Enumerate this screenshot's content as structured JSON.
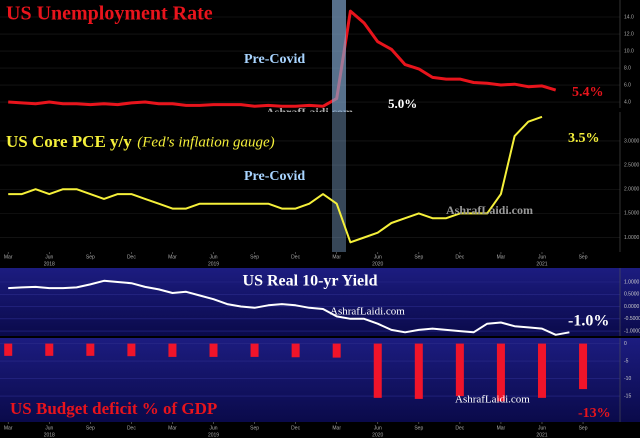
{
  "chart_data": [
    {
      "type": "line",
      "title": "US Unemployment Rate",
      "color": "#e8141c",
      "x": [
        0,
        1,
        2,
        3,
        4,
        5,
        6,
        7,
        8,
        9,
        10,
        11,
        12,
        13,
        14,
        15,
        16,
        17,
        18,
        19,
        20,
        21,
        22,
        23,
        24,
        25,
        26,
        27,
        28,
        29,
        30,
        31,
        32,
        33,
        34,
        35,
        36,
        37,
        38,
        39,
        40
      ],
      "values": [
        4.0,
        3.9,
        3.8,
        4.0,
        3.8,
        3.8,
        3.7,
        3.8,
        3.7,
        3.9,
        4.0,
        3.8,
        3.8,
        3.6,
        3.6,
        3.7,
        3.7,
        3.7,
        3.5,
        3.6,
        3.5,
        3.5,
        3.6,
        3.5,
        4.4,
        14.7,
        13.3,
        11.1,
        10.2,
        8.4,
        7.9,
        6.9,
        6.7,
        6.7,
        6.3,
        6.2,
        6.0,
        6.1,
        5.8,
        5.9,
        5.4
      ],
      "ylim": [
        3.3,
        16.0
      ],
      "yticks": [
        {
          "value": 4,
          "label": "4.0"
        },
        {
          "value": 6,
          "label": "6.0"
        },
        {
          "value": 8,
          "label": "8.0"
        },
        {
          "value": 10,
          "label": "10.0"
        },
        {
          "value": 12,
          "label": "12.0"
        },
        {
          "value": 14,
          "label": "14.0"
        }
      ],
      "xlim": [
        -0.6,
        44.7
      ],
      "grid": true,
      "annotations": [
        "Pre-Covid",
        "5.0%",
        "AshrafLaidi.com",
        "5.4%"
      ]
    },
    {
      "type": "line",
      "title": "US Core PCE y/y",
      "subtitle": "(Fed's inflation gauge)",
      "color": "#f5f03a",
      "x": [
        0,
        1,
        2,
        3,
        4,
        5,
        6,
        7,
        8,
        9,
        10,
        11,
        12,
        13,
        14,
        15,
        16,
        17,
        18,
        19,
        20,
        21,
        22,
        23,
        24,
        25,
        26,
        27,
        28,
        29,
        30,
        31,
        32,
        33,
        34,
        35,
        36,
        37,
        38,
        39
      ],
      "values": [
        1.9,
        1.9,
        2.0,
        1.9,
        2.0,
        2.0,
        1.9,
        1.8,
        1.9,
        1.9,
        1.8,
        1.7,
        1.6,
        1.6,
        1.7,
        1.7,
        1.7,
        1.7,
        1.7,
        1.7,
        1.6,
        1.6,
        1.7,
        1.9,
        1.7,
        0.9,
        1.0,
        1.1,
        1.3,
        1.4,
        1.5,
        1.4,
        1.4,
        1.5,
        1.5,
        1.5,
        1.9,
        3.1,
        3.4,
        3.5
      ],
      "ylim": [
        0.7,
        3.6
      ],
      "yticks": [
        {
          "value": 1,
          "label": "1.0000"
        },
        {
          "value": 1.5,
          "label": "1.5000"
        },
        {
          "value": 2,
          "label": "2.0000"
        },
        {
          "value": 2.5,
          "label": "2.5000"
        },
        {
          "value": 3,
          "label": "3.0000"
        }
      ],
      "xlim": [
        -0.6,
        44.7
      ],
      "grid": true,
      "xticks": [
        {
          "value": 0,
          "label": "Mar"
        },
        {
          "value": 3,
          "label": "Jun"
        },
        {
          "value": 6,
          "label": "Sep"
        },
        {
          "value": 9,
          "label": "Dec"
        },
        {
          "value": 12,
          "label": "Mar"
        },
        {
          "value": 15,
          "label": "Jun"
        },
        {
          "value": 18,
          "label": "Sep"
        },
        {
          "value": 21,
          "label": "Dec"
        },
        {
          "value": 24,
          "label": "Mar"
        },
        {
          "value": 27,
          "label": "Jun"
        },
        {
          "value": 30,
          "label": "Sep"
        },
        {
          "value": 33,
          "label": "Dec"
        },
        {
          "value": 36,
          "label": "Mar"
        },
        {
          "value": 39,
          "label": "Jun"
        },
        {
          "value": 42,
          "label": "Sep"
        }
      ],
      "xyears": [
        {
          "value": 3,
          "label": "2018"
        },
        {
          "value": 15,
          "label": "2019"
        },
        {
          "value": 27,
          "label": "2020"
        },
        {
          "value": 39,
          "label": "2021"
        }
      ],
      "annotations": [
        "3.5%",
        "Pre-Covid",
        "AshrafLaidi.com"
      ]
    },
    {
      "type": "line",
      "title": "US Real 10-yr Yield",
      "color": "#ffffff",
      "x": [
        0,
        1,
        2,
        3,
        4,
        5,
        6,
        7,
        8,
        9,
        10,
        11,
        12,
        13,
        14,
        15,
        16,
        17,
        18,
        19,
        20,
        21,
        22,
        23,
        24,
        25,
        26,
        27,
        28,
        29,
        30,
        31,
        32,
        33,
        34,
        35,
        36,
        37,
        38,
        39,
        40,
        41
      ],
      "values": [
        0.75,
        0.78,
        0.8,
        0.75,
        0.75,
        0.78,
        0.9,
        1.05,
        1.0,
        0.95,
        0.8,
        0.7,
        0.55,
        0.6,
        0.45,
        0.3,
        0.1,
        0.0,
        -0.05,
        0.05,
        0.1,
        0.05,
        -0.05,
        -0.1,
        -0.4,
        -0.5,
        -0.5,
        -0.7,
        -0.95,
        -1.05,
        -0.95,
        -0.9,
        -0.95,
        -1.0,
        -1.05,
        -0.7,
        -0.65,
        -0.8,
        -0.85,
        -0.9,
        -1.15,
        -1.05
      ],
      "ylim": [
        -1.2,
        1.57
      ],
      "yticks": [
        {
          "value": -1,
          "label": "-1.0000"
        },
        {
          "value": -0.5,
          "label": "-0.5000"
        },
        {
          "value": 0,
          "label": "0.0000"
        },
        {
          "value": 0.5,
          "label": "0.5000"
        },
        {
          "value": 1,
          "label": "1.0000"
        }
      ],
      "xlim": [
        -0.6,
        44.7
      ],
      "grid": true,
      "annotations": [
        "AshrafLaidi.com",
        "-1.0%"
      ]
    },
    {
      "type": "bar",
      "title": "US Budget deficit % of GDP",
      "color": "#f0142a",
      "x": [
        0,
        3,
        6,
        9,
        12,
        15,
        18,
        21,
        24,
        27,
        30,
        33,
        36,
        39,
        42
      ],
      "values": [
        -3.5,
        -3.5,
        -3.5,
        -3.6,
        -3.8,
        -3.8,
        -3.8,
        -3.9,
        -4.0,
        -15.5,
        -15.8,
        -15.0,
        -16.5,
        -15.5,
        -13.0
      ],
      "ylim": [
        -22.4,
        1.6
      ],
      "yticks": [
        0,
        -5,
        -10,
        -15
      ],
      "xlim": [
        -0.6,
        44.7
      ],
      "grid": true,
      "xticks": [
        {
          "value": 0,
          "label": "Mar"
        },
        {
          "value": 3,
          "label": "Jun"
        },
        {
          "value": 6,
          "label": "Sep"
        },
        {
          "value": 9,
          "label": "Dec"
        },
        {
          "value": 12,
          "label": "Mar"
        },
        {
          "value": 15,
          "label": "Jun"
        },
        {
          "value": 18,
          "label": "Sep"
        },
        {
          "value": 21,
          "label": "Dec"
        },
        {
          "value": 24,
          "label": "Mar"
        },
        {
          "value": 27,
          "label": "Jun"
        },
        {
          "value": 30,
          "label": "Sep"
        },
        {
          "value": 33,
          "label": "Dec"
        },
        {
          "value": 36,
          "label": "Mar"
        },
        {
          "value": 39,
          "label": "Jun"
        },
        {
          "value": 42,
          "label": "Sep"
        }
      ],
      "xyears": [
        {
          "value": 3,
          "label": "2018"
        },
        {
          "value": 15,
          "label": "2019"
        },
        {
          "value": 27,
          "label": "2020"
        },
        {
          "value": 39,
          "label": "2021"
        }
      ],
      "annotations": [
        "AshrafLaidi.com",
        "-13%"
      ]
    }
  ]
}
